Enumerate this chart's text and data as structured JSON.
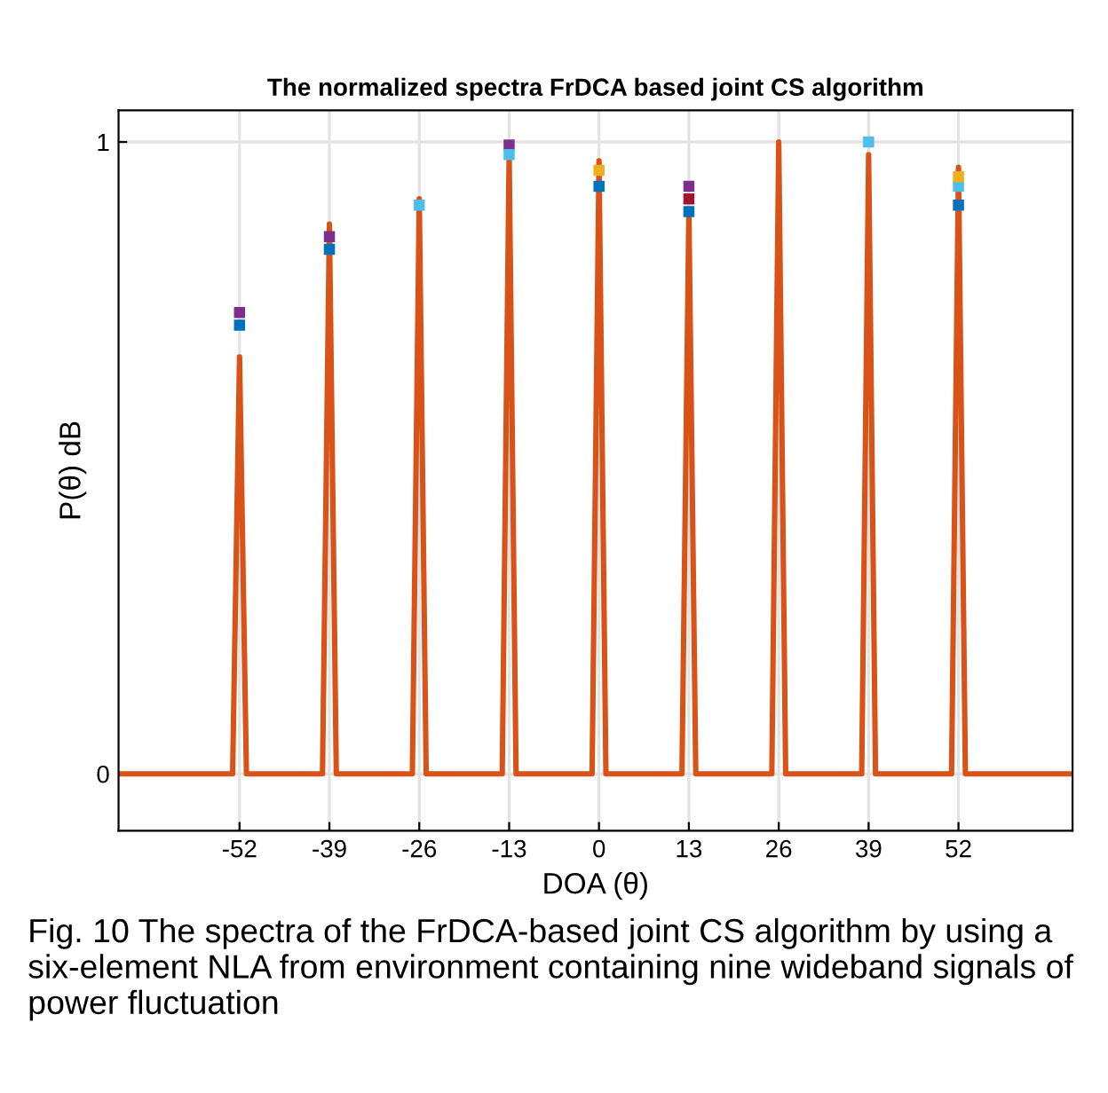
{
  "chart_data": {
    "type": "line",
    "title": "The normalized spectra FrDCA based joint CS algorithm",
    "xlabel": "DOA (θ)",
    "ylabel": "P(θ) dB",
    "annotations": [
      "Fig. 10 The spectra of the FrDCA-based joint CS algorithm by using a six-element NLA from environment containing nine wideband signals of power fluctuation"
    ],
    "x": [
      -69.5,
      -53,
      -52,
      -51,
      -40,
      -39,
      -38,
      -27,
      -26,
      -25,
      -14,
      -13,
      -12,
      -1,
      0,
      1,
      12,
      13,
      14,
      25,
      26,
      27,
      38,
      39,
      40,
      51,
      52,
      53,
      68.5
    ],
    "series": [
      {
        "color": "#d95319",
        "values": [
          0,
          0,
          0.66,
          0,
          0,
          0.87,
          0,
          0,
          0.91,
          0,
          0,
          0.98,
          0,
          0,
          0.97,
          0,
          0,
          0.89,
          0,
          0,
          1.0,
          0,
          0,
          0.98,
          0,
          0,
          0.96,
          0,
          0
        ]
      },
      {
        "type": "scatter",
        "marker": "square",
        "color": "#7e2f8e",
        "x": [
          -52,
          -39,
          -13,
          13
        ],
        "values": [
          0.73,
          0.85,
          0.995,
          0.93
        ]
      },
      {
        "type": "scatter",
        "marker": "square",
        "color": "#0072bd",
        "x": [
          -52,
          -39,
          0,
          13,
          52
        ],
        "values": [
          0.71,
          0.83,
          0.93,
          0.89,
          0.9
        ]
      },
      {
        "type": "scatter",
        "marker": "square",
        "color": "#4dbeee",
        "x": [
          -26,
          -13,
          39,
          52
        ],
        "values": [
          0.9,
          0.98,
          1.0,
          0.93
        ]
      },
      {
        "type": "scatter",
        "marker": "square",
        "color": "#edb120",
        "x": [
          0,
          52
        ],
        "values": [
          0.955,
          0.945
        ]
      },
      {
        "type": "scatter",
        "marker": "square",
        "color": "#a2142f",
        "x": [
          13
        ],
        "values": [
          0.91
        ]
      }
    ],
    "xlim": [
      -69.5,
      68.5
    ],
    "ylim": [
      -0.09,
      1.05
    ],
    "xticks": [
      -52,
      -39,
      -26,
      -13,
      0,
      13,
      26,
      39,
      52
    ],
    "yticks": [
      0,
      1
    ],
    "grid": true,
    "line_style": "solid",
    "marker": "none"
  }
}
